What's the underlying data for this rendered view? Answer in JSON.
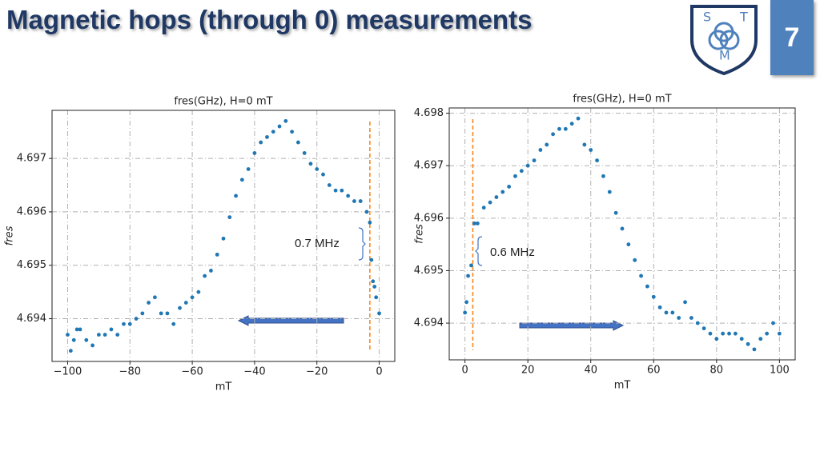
{
  "slide_title": "Magnetic hops (through 0) measurements",
  "page_number": "7",
  "logo_letters": [
    "S",
    "T",
    "M"
  ],
  "chart_data": [
    {
      "type": "scatter",
      "title": "fres(GHz), H=0 mT",
      "xlabel": "mT",
      "ylabel": "fres",
      "color": "#1f77b4",
      "grid": true,
      "xlim": [
        -105,
        5
      ],
      "ylim": [
        4.6932,
        4.6979
      ],
      "xticks": [
        {
          "value": -100,
          "label": "−100"
        },
        {
          "value": -80,
          "label": "−80"
        },
        {
          "value": -60,
          "label": "−60"
        },
        {
          "value": -40,
          "label": "−40"
        },
        {
          "value": -20,
          "label": "−20"
        },
        0
      ],
      "yticks": [
        4.694,
        4.695,
        4.696,
        4.697
      ],
      "vline": {
        "x": -3,
        "color": "#ff7f0e"
      },
      "annotations": [
        "0.7 MHz"
      ],
      "x": [
        -100,
        -99,
        -98,
        -97,
        -96,
        -94,
        -92,
        -90,
        -88,
        -86,
        -84,
        -82,
        -80,
        -78,
        -76,
        -74,
        -72,
        -70,
        -68,
        -66,
        -64,
        -62,
        -60,
        -58,
        -56,
        -54,
        -52,
        -50,
        -48,
        -46,
        -44,
        -42,
        -40,
        -38,
        -36,
        -34,
        -32,
        -30,
        -28,
        -26,
        -24,
        -22,
        -20,
        -18,
        -16,
        -14,
        -12,
        -10,
        -8,
        -6,
        -4,
        -3,
        -2.5,
        -2,
        -1.5,
        -1,
        0
      ],
      "values": [
        4.6937,
        4.6934,
        4.6936,
        4.6938,
        4.6938,
        4.6936,
        4.6935,
        4.6937,
        4.6937,
        4.6938,
        4.6937,
        4.6939,
        4.6939,
        4.694,
        4.6941,
        4.6943,
        4.6944,
        4.6941,
        4.6941,
        4.6939,
        4.6942,
        4.6943,
        4.6944,
        4.6945,
        4.6948,
        4.6949,
        4.6952,
        4.6955,
        4.6959,
        4.6963,
        4.6966,
        4.6968,
        4.6971,
        4.6973,
        4.6974,
        4.6975,
        4.6976,
        4.6977,
        4.6975,
        4.6973,
        4.6971,
        4.6969,
        4.6968,
        4.6967,
        4.6965,
        4.6964,
        4.6964,
        4.6963,
        4.6962,
        4.6962,
        4.696,
        4.6958,
        4.6951,
        4.6947,
        4.6946,
        4.6944,
        4.6941
      ]
    },
    {
      "type": "scatter",
      "title": "fres(GHz), H=0 mT",
      "xlabel": "mT",
      "ylabel": "fres",
      "color": "#1f77b4",
      "grid": true,
      "xlim": [
        -5,
        105
      ],
      "ylim": [
        4.6933,
        4.6981
      ],
      "xticks": [
        0,
        20,
        40,
        60,
        80,
        100
      ],
      "yticks": [
        4.694,
        4.695,
        4.696,
        4.697,
        4.698
      ],
      "vline": {
        "x": 2.5,
        "color": "#ff7f0e"
      },
      "annotations": [
        "0.6 MHz"
      ],
      "x": [
        0,
        0.5,
        1,
        2,
        3,
        4,
        6,
        8,
        10,
        12,
        14,
        16,
        18,
        20,
        22,
        24,
        26,
        28,
        30,
        32,
        34,
        36,
        38,
        40,
        42,
        44,
        46,
        48,
        50,
        52,
        54,
        56,
        58,
        60,
        62,
        64,
        66,
        68,
        70,
        72,
        74,
        76,
        78,
        80,
        82,
        84,
        86,
        88,
        90,
        92,
        94,
        96,
        98,
        100
      ],
      "values": [
        4.6942,
        4.6944,
        4.6949,
        4.6951,
        4.6959,
        4.6959,
        4.6962,
        4.6963,
        4.6964,
        4.6965,
        4.6966,
        4.6968,
        4.6969,
        4.697,
        4.6971,
        4.6973,
        4.6974,
        4.6976,
        4.6977,
        4.6977,
        4.6978,
        4.6979,
        4.6974,
        4.6973,
        4.6971,
        4.6968,
        4.6965,
        4.6961,
        4.6958,
        4.6955,
        4.6952,
        4.6949,
        4.6947,
        4.6945,
        4.6943,
        4.6942,
        4.6942,
        4.6941,
        4.6944,
        4.6941,
        4.694,
        4.6939,
        4.6938,
        4.6937,
        4.6938,
        4.6938,
        4.6938,
        4.6937,
        4.6936,
        4.6935,
        4.6937,
        4.6938,
        4.694,
        4.6938
      ]
    }
  ]
}
